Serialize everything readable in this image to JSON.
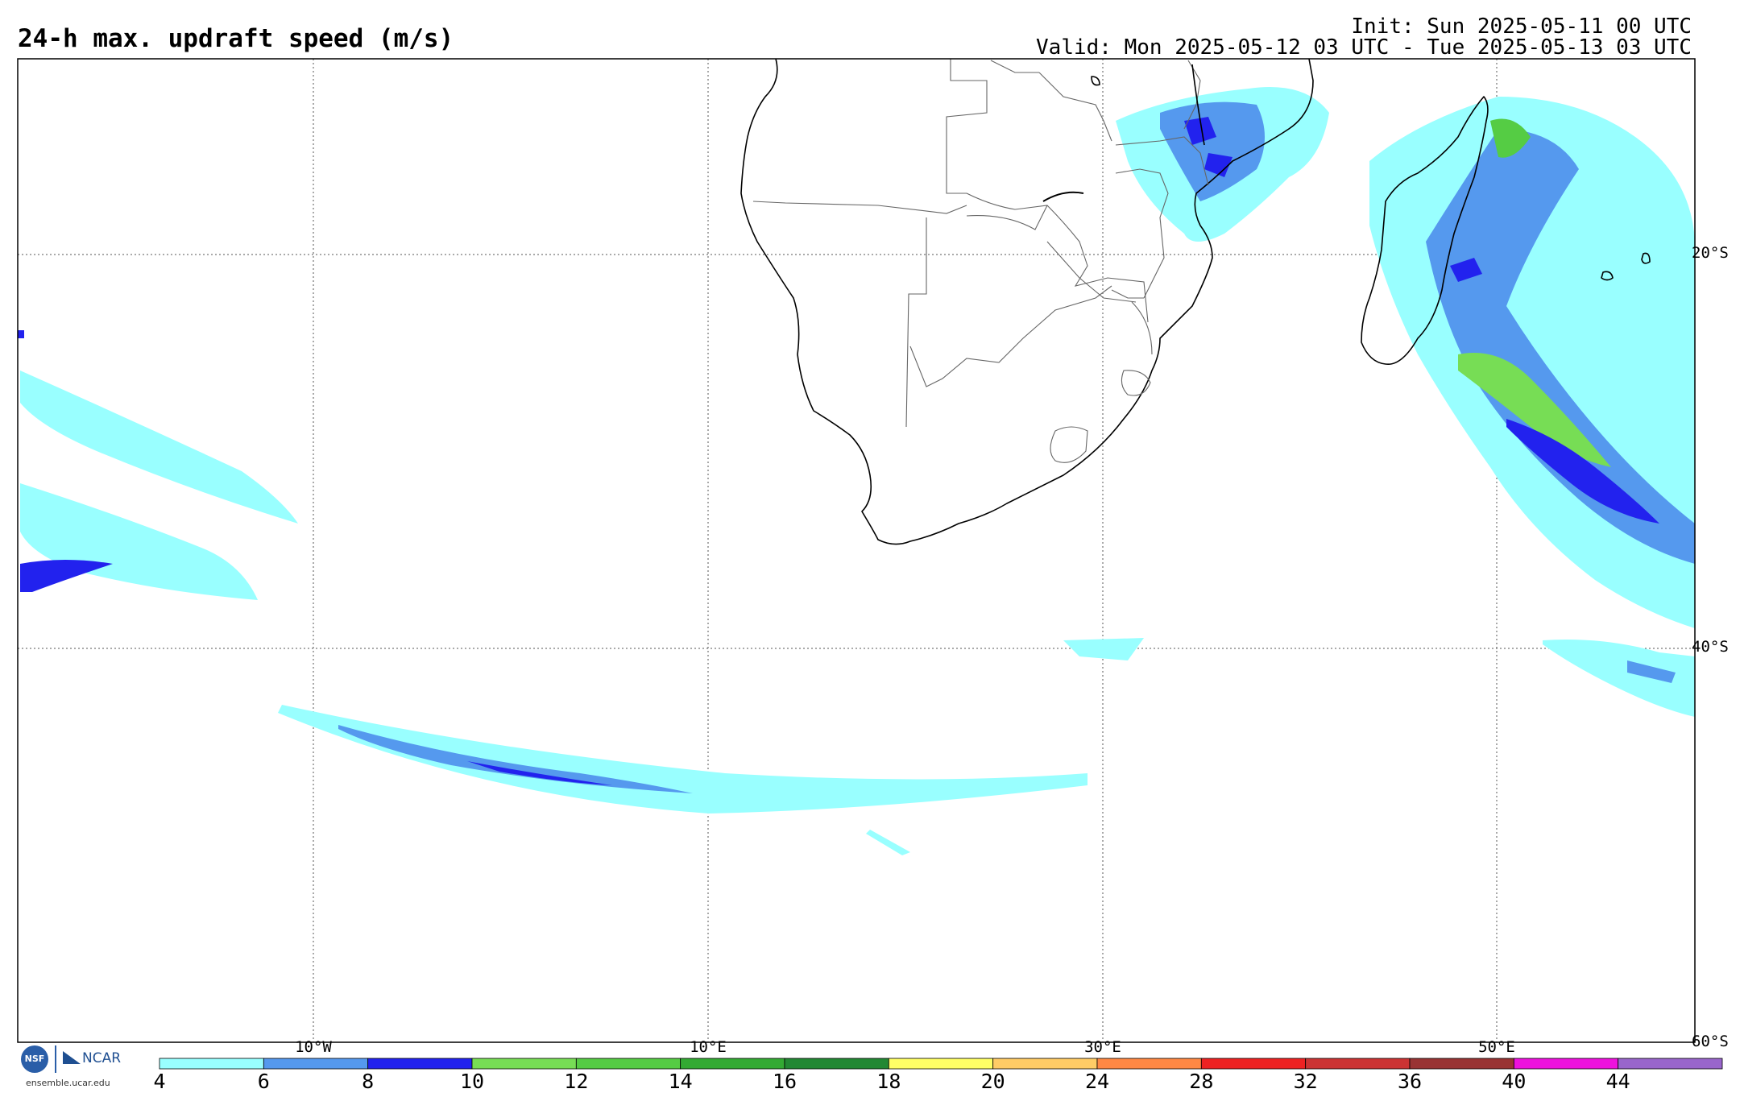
{
  "header": {
    "title": "24-h max. updraft speed (m/s)",
    "init": "Init: Sun 2025-05-11 00 UTC",
    "valid": "Valid: Mon 2025-05-12 03 UTC - Tue 2025-05-13 03 UTC"
  },
  "map": {
    "latitude_labels": [
      "20°S",
      "40°S",
      "60°S"
    ],
    "longitude_labels": [
      "10°W",
      "10°E",
      "30°E",
      "50°E"
    ],
    "regions_with_updrafts": [
      "Southern Africa",
      "Madagascar",
      "Mozambique Channel",
      "South Atlantic",
      "South Indian Ocean"
    ]
  },
  "colorbar": {
    "labels": [
      "4",
      "6",
      "8",
      "10",
      "12",
      "14",
      "16",
      "18",
      "20",
      "24",
      "28",
      "32",
      "36",
      "40",
      "44"
    ],
    "colors": [
      "#99ffff",
      "#5599ee",
      "#2222ee",
      "#77dd55",
      "#55cc44",
      "#33aa33",
      "#228833",
      "#ffff66",
      "#ffcc66",
      "#ff8844",
      "#ee2222",
      "#cc3333",
      "#993333",
      "#ee11dd",
      "#9966cc"
    ]
  },
  "logo": {
    "nsf": "NSF",
    "ncar": "NCAR",
    "url": "ensemble.ucar.edu"
  }
}
